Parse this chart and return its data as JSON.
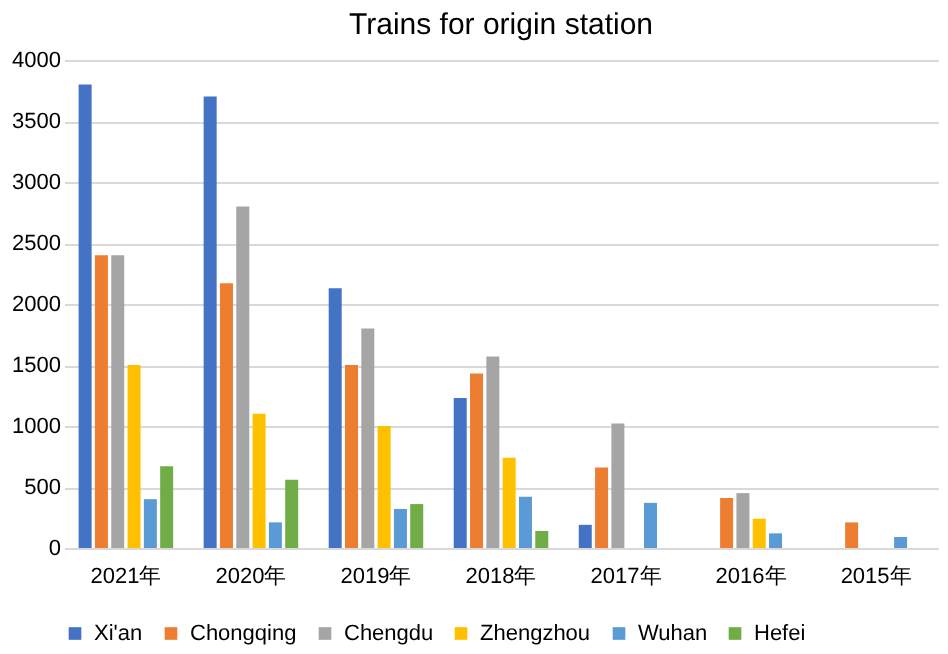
{
  "chart_data": {
    "type": "bar",
    "title": "Trains for origin station",
    "categories": [
      "2021年",
      "2020年",
      "2019年",
      "2018年",
      "2017年",
      "2016年",
      "2015年"
    ],
    "series": [
      {
        "name": "Xi'an",
        "color": "#4472c4",
        "values": [
          3800,
          3700,
          2130,
          1230,
          190,
          null,
          null
        ]
      },
      {
        "name": "Chongqing",
        "color": "#ed7d31",
        "values": [
          2400,
          2170,
          1500,
          1430,
          660,
          410,
          210
        ]
      },
      {
        "name": "Chengdu",
        "color": "#a5a5a5",
        "values": [
          2400,
          2800,
          1800,
          1570,
          1020,
          450,
          null
        ]
      },
      {
        "name": "Zhengzhou",
        "color": "#ffc000",
        "values": [
          1500,
          1100,
          1000,
          740,
          null,
          240,
          null
        ]
      },
      {
        "name": "Wuhan",
        "color": "#5b9bd5",
        "values": [
          400,
          210,
          320,
          420,
          370,
          120,
          90
        ]
      },
      {
        "name": "Hefei",
        "color": "#70ad47",
        "values": [
          670,
          560,
          360,
          140,
          null,
          null,
          null
        ]
      }
    ],
    "ylim": [
      0,
      4000
    ],
    "yticks": [
      0,
      500,
      1000,
      1500,
      2000,
      2500,
      3000,
      3500,
      4000
    ],
    "grid": "y",
    "legend": "bottom"
  }
}
